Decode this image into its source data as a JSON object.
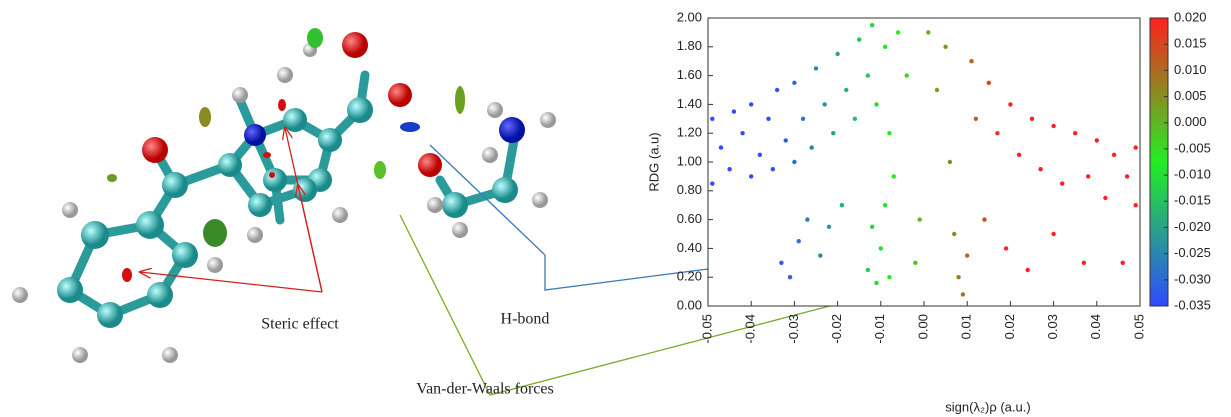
{
  "chart_data": {
    "type": "scatter",
    "xlabel": "sign(λ₂)ρ (a.u.)",
    "ylabel": "RDG (a.u)",
    "annotations": [
      "Steric effect",
      "H-bond",
      "Van-der-Waals forces"
    ],
    "annotation_colors": [
      "#d42020",
      "#1a2a7a",
      "#2aa02a"
    ],
    "xlim": [
      -0.05,
      0.05
    ],
    "ylim": [
      0,
      2
    ],
    "xticks": [
      -0.05,
      -0.04,
      -0.03,
      -0.02,
      -0.01,
      {
        "value": 0,
        "label": "0.00"
      },
      0.01,
      0.02,
      0.03,
      0.04,
      0.05
    ],
    "yticks": [
      {
        "value": 0,
        "label": "0.00"
      },
      {
        "value": 0.2,
        "label": "0.20"
      },
      {
        "value": 0.4,
        "label": "0.40"
      },
      {
        "value": 0.6,
        "label": "0.60"
      },
      {
        "value": 0.8,
        "label": "0.80"
      },
      {
        "value": 1,
        "label": "1.00"
      },
      {
        "value": 1.2,
        "label": "1.20"
      },
      {
        "value": 1.4,
        "label": "1.40"
      },
      {
        "value": 1.6,
        "label": "1.60"
      },
      {
        "value": 1.8,
        "label": "1.80"
      },
      {
        "value": 2,
        "label": "2.00"
      }
    ],
    "clim": [
      -0.035,
      0.02
    ],
    "cticks": [
      {
        "value": 0.02,
        "label": "0.020"
      },
      0.015,
      {
        "value": 0.01,
        "label": "0.010"
      },
      0.005,
      {
        "value": 0,
        "label": "0.000"
      },
      -0.005,
      {
        "value": -0.01,
        "label": "-0.010"
      },
      -0.015,
      {
        "value": -0.02,
        "label": "-0.020"
      },
      -0.025,
      {
        "value": -0.03,
        "label": "-0.030"
      },
      -0.035
    ],
    "colormap": [
      "#2f4bff",
      "#22ee22",
      "#ff2020"
    ],
    "x": [
      -0.049,
      -0.049,
      -0.047,
      -0.045,
      -0.044,
      -0.042,
      -0.04,
      -0.04,
      -0.038,
      -0.036,
      -0.035,
      -0.034,
      -0.032,
      -0.03,
      -0.03,
      -0.028,
      -0.026,
      -0.025,
      -0.023,
      -0.021,
      -0.02,
      -0.018,
      -0.016,
      -0.015,
      -0.013,
      -0.012,
      -0.011,
      -0.009,
      -0.008,
      -0.006,
      -0.004,
      -0.033,
      -0.031,
      -0.029,
      -0.027,
      -0.024,
      -0.022,
      -0.019,
      -0.013,
      -0.012,
      -0.011,
      -0.01,
      -0.009,
      -0.008,
      -0.007,
      -0.002,
      -0.001,
      0.001,
      0.003,
      0.005,
      0.006,
      0.007,
      0.008,
      0.009,
      0.01,
      0.011,
      0.012,
      0.014,
      0.015,
      0.017,
      0.019,
      0.02,
      0.022,
      0.024,
      0.025,
      0.027,
      0.03,
      0.03,
      0.032,
      0.035,
      0.037,
      0.038,
      0.04,
      0.042,
      0.044,
      0.046,
      0.047,
      0.049,
      0.049
    ],
    "y": [
      0.85,
      1.3,
      1.1,
      0.95,
      1.35,
      1.2,
      0.9,
      1.4,
      1.05,
      1.3,
      0.95,
      1.5,
      1.15,
      1.0,
      1.55,
      1.3,
      1.1,
      1.65,
      1.4,
      1.2,
      1.75,
      1.5,
      1.3,
      1.85,
      1.6,
      1.95,
      1.4,
      1.8,
      1.2,
      1.9,
      1.6,
      0.3,
      0.2,
      0.45,
      0.6,
      0.35,
      0.55,
      0.7,
      0.25,
      0.55,
      0.16,
      0.4,
      0.7,
      0.2,
      0.9,
      0.3,
      0.6,
      1.9,
      1.5,
      1.8,
      1.0,
      0.5,
      0.2,
      0.08,
      0.35,
      1.7,
      1.3,
      0.6,
      1.55,
      1.2,
      0.4,
      1.4,
      1.05,
      0.25,
      1.3,
      0.95,
      1.25,
      0.5,
      0.85,
      1.2,
      0.3,
      0.9,
      1.15,
      0.75,
      1.05,
      0.3,
      0.9,
      1.1,
      0.7
    ]
  }
}
